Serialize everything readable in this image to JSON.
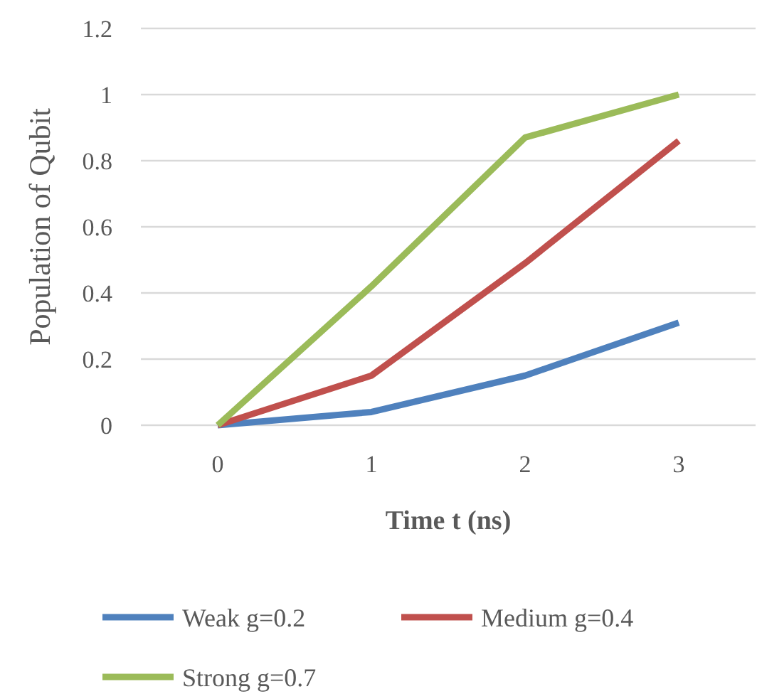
{
  "chart_data": {
    "type": "line",
    "xlabel": "Time t (ns)",
    "ylabel": "Population of Qubit",
    "categories": [
      "0",
      "1",
      "2",
      "3"
    ],
    "series": [
      {
        "name": "Weak g=0.2",
        "color": "#4f81bd",
        "values": [
          0,
          0.04,
          0.15,
          0.31
        ]
      },
      {
        "name": "Medium g=0.4",
        "color": "#c0504d",
        "values": [
          0,
          0.15,
          0.49,
          0.86
        ]
      },
      {
        "name": "Strong g=0.7",
        "color": "#9bbb59",
        "values": [
          0,
          0.42,
          0.87,
          1.0
        ]
      }
    ],
    "ylim": [
      0,
      1.2
    ],
    "yticks": [
      0,
      0.2,
      0.4,
      0.6,
      0.8,
      1,
      1.2
    ],
    "grid": "y",
    "legend": "bottom",
    "marker": "none",
    "line_style": "solid"
  }
}
